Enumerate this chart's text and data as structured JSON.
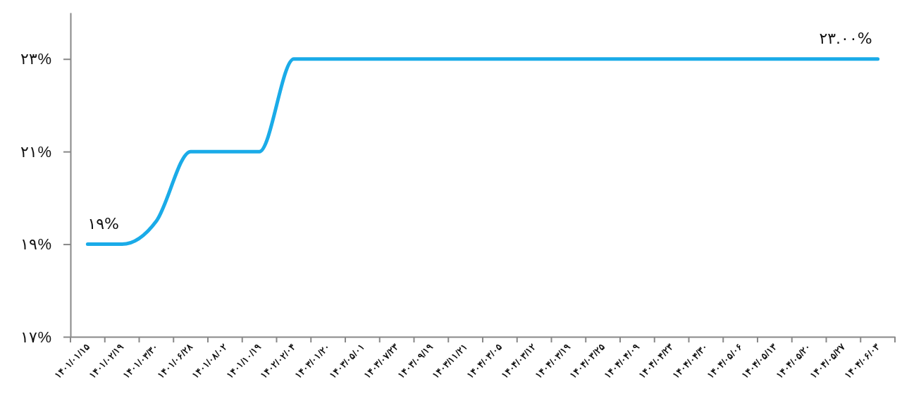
{
  "chart_data": {
    "type": "line",
    "categories": [
      "۱۴۰۱/۰۱/۱۵",
      "۱۴۰۱/۰۲/۱۹",
      "۱۴۰۱/۰۳/۳۰",
      "۱۴۰۱/۰۶/۲۸",
      "۱۴۰۱/۰۸/۰۲",
      "۱۴۰۱/۱۰/۱۹",
      "۱۴۰۲/۰۲/۰۴",
      "۱۴۰۳/۰۱/۲۰",
      "۱۴۰۳/۰۵/۰۱",
      "۱۴۰۳/۰۷/۲۳",
      "۱۴۰۳/۰۹/۱۹",
      "۱۴۰۳/۱۱/۲۱",
      "۱۴۰۴/۰۳/۰۵",
      "۱۴۰۴/۰۳/۱۲",
      "۱۴۰۴/۰۳/۱۹",
      "۱۴۰۴/۰۳/۲۵",
      "۱۴۰۴/۰۴/۰۹",
      "۱۴۰۴/۰۴/۲۳",
      "۱۴۰۴/۰۴/۳۰",
      "۱۴۰۴/۰۵/۰۶",
      "۱۴۰۴/۰۵/۱۳",
      "۱۴۰۴/۰۵/۲۰",
      "۱۴۰۴/۰۵/۲۷",
      "۱۴۰۴/۰۶/۰۳"
    ],
    "series": [
      {
        "color": "#1aabe8",
        "values": [
          19,
          19,
          19.5,
          21,
          21,
          21,
          23,
          23,
          23,
          23,
          23,
          23,
          23,
          23,
          23,
          23,
          23,
          23,
          23,
          23,
          23,
          23,
          23,
          23
        ],
        "value_labels": [
          "۱۹%",
          null,
          null,
          null,
          null,
          null,
          null,
          null,
          null,
          null,
          null,
          null,
          null,
          null,
          null,
          null,
          null,
          null,
          null,
          null,
          null,
          null,
          null,
          "۲۳.۰۰%"
        ]
      }
    ],
    "ylim": [
      17,
      24
    ],
    "yticks": [
      {
        "value": 17,
        "label": "۱۷%"
      },
      {
        "value": 19,
        "label": "۱۹%"
      },
      {
        "value": 21,
        "label": "۲۱%"
      },
      {
        "value": 23,
        "label": "۲۳%"
      }
    ],
    "grid": false,
    "marker": "none",
    "line_style": "solid"
  }
}
